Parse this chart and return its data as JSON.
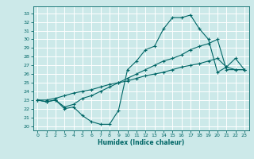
{
  "title": "",
  "xlabel": "Humidex (Indice chaleur)",
  "ylabel": "",
  "background_color": "#cce9e9",
  "grid_color": "#ffffff",
  "line_color": "#006666",
  "xlim": [
    -0.5,
    23.5
  ],
  "ylim": [
    19.5,
    33.8
  ],
  "xticks": [
    0,
    1,
    2,
    3,
    4,
    5,
    6,
    7,
    8,
    9,
    10,
    11,
    12,
    13,
    14,
    15,
    16,
    17,
    18,
    19,
    20,
    21,
    22,
    23
  ],
  "yticks": [
    20,
    21,
    22,
    23,
    24,
    25,
    26,
    27,
    28,
    29,
    30,
    31,
    32,
    33
  ],
  "curve1_x": [
    0,
    1,
    2,
    3,
    4,
    5,
    6,
    7,
    8,
    9,
    10,
    11,
    12,
    13,
    14,
    15,
    16,
    17,
    18,
    19,
    20,
    21,
    22,
    23
  ],
  "curve1_y": [
    23.0,
    22.8,
    23.0,
    22.0,
    22.2,
    21.2,
    20.5,
    20.2,
    20.2,
    21.8,
    26.5,
    27.5,
    28.8,
    29.2,
    31.2,
    32.5,
    32.5,
    32.8,
    31.2,
    30.0,
    26.2,
    26.8,
    27.8,
    26.5
  ],
  "curve2_x": [
    0,
    1,
    2,
    3,
    4,
    5,
    6,
    7,
    8,
    9,
    10,
    11,
    12,
    13,
    14,
    15,
    16,
    17,
    18,
    19,
    20,
    21,
    22,
    23
  ],
  "curve2_y": [
    23.0,
    22.8,
    23.0,
    22.2,
    22.5,
    23.2,
    23.5,
    24.0,
    24.5,
    25.0,
    25.5,
    26.0,
    26.5,
    27.0,
    27.5,
    27.8,
    28.2,
    28.8,
    29.2,
    29.5,
    30.0,
    26.5,
    26.5,
    26.5
  ],
  "curve3_x": [
    0,
    1,
    2,
    3,
    4,
    5,
    6,
    7,
    8,
    9,
    10,
    11,
    12,
    13,
    14,
    15,
    16,
    17,
    18,
    19,
    20,
    21,
    22,
    23
  ],
  "curve3_y": [
    23.0,
    23.0,
    23.2,
    23.5,
    23.8,
    24.0,
    24.2,
    24.5,
    24.8,
    25.0,
    25.2,
    25.5,
    25.8,
    26.0,
    26.2,
    26.5,
    26.8,
    27.0,
    27.2,
    27.5,
    27.8,
    26.8,
    26.5,
    26.5
  ],
  "xlabel_fontsize": 5.5,
  "tick_fontsize": 4.5
}
